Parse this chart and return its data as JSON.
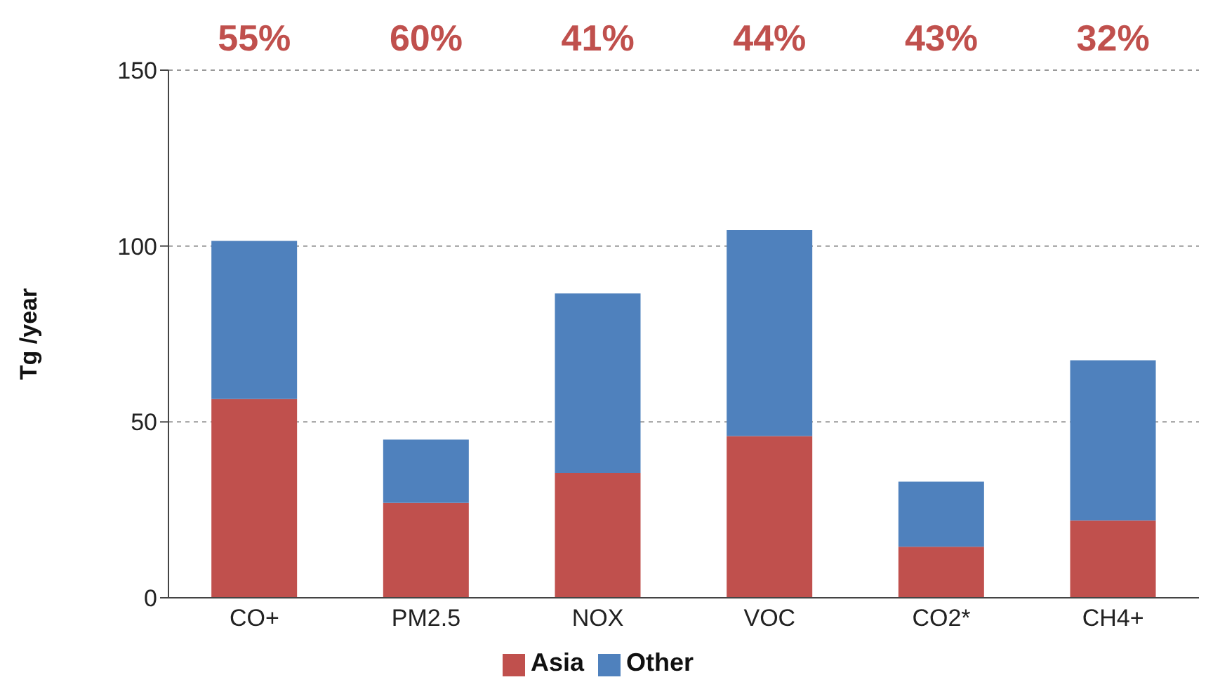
{
  "chart_data": {
    "type": "bar",
    "stacked": true,
    "ylabel": "Tg /year",
    "categories": [
      "CO+",
      "PM2.5",
      "NOX",
      "VOC",
      "CO2*",
      "CH4+"
    ],
    "series": [
      {
        "name": "Asia",
        "color": "#c0504d",
        "values": [
          56.5,
          27,
          35.5,
          46,
          14.5,
          22
        ]
      },
      {
        "name": "Other",
        "color": "#4f81bd",
        "values": [
          45,
          18,
          51,
          58.5,
          18.5,
          45.5
        ]
      }
    ],
    "ylim": [
      0,
      150
    ],
    "yticks": [
      0,
      50,
      100,
      150
    ],
    "grid": "y",
    "legend": "bottom",
    "annotations": [
      "55%",
      "60%",
      "41%",
      "44%",
      "43%",
      "32%"
    ]
  }
}
